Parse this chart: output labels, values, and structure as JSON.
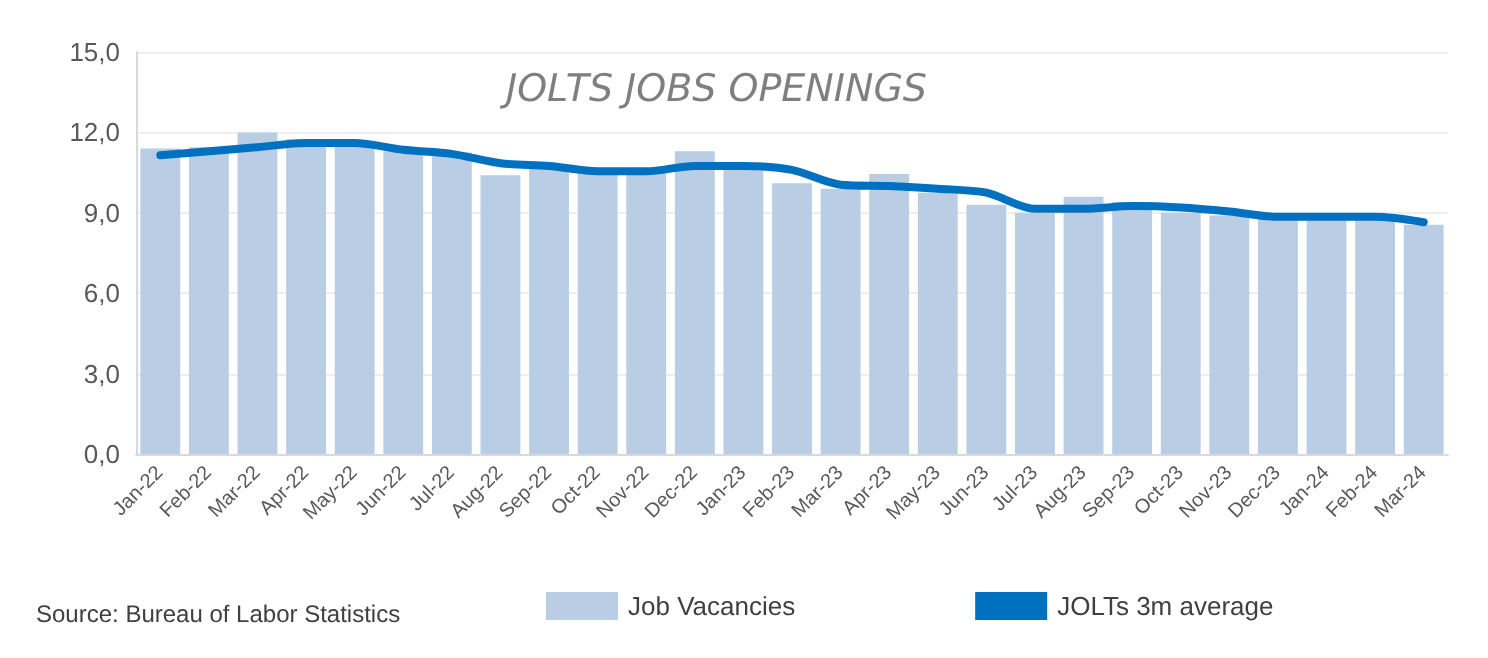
{
  "chart_data": {
    "type": "bar",
    "title": "JOLTS JOBS OPENINGS",
    "categories": [
      "Jan-22",
      "Feb-22",
      "Mar-22",
      "Apr-22",
      "May-22",
      "Jun-22",
      "Jul-22",
      "Aug-22",
      "Sep-22",
      "Oct-22",
      "Nov-22",
      "Dec-22",
      "Jan-23",
      "Feb-23",
      "Mar-23",
      "Apr-23",
      "May-23",
      "Jun-23",
      "Jul-23",
      "Aug-23",
      "Sep-23",
      "Oct-23",
      "Nov-23",
      "Dec-23",
      "Jan-24",
      "Feb-24",
      "Mar-24"
    ],
    "series": [
      {
        "name": "Job Vacancies",
        "color": "#b9cde4",
        "values": [
          11.4,
          11.45,
          12.0,
          11.75,
          11.6,
          11.3,
          11.25,
          10.4,
          10.8,
          10.5,
          10.5,
          11.3,
          10.8,
          10.1,
          9.9,
          10.45,
          9.75,
          9.3,
          9.0,
          9.6,
          9.4,
          9.0,
          8.9,
          8.85,
          8.85,
          8.9,
          8.55
        ]
      },
      {
        "name": "JOLTs 3m average",
        "type": "line",
        "color": "#0070c0",
        "values": [
          11.15,
          11.3,
          11.45,
          11.6,
          11.6,
          11.35,
          11.2,
          10.85,
          10.75,
          10.55,
          10.55,
          10.75,
          10.75,
          10.6,
          10.05,
          10.0,
          9.9,
          9.75,
          9.15,
          9.15,
          9.25,
          9.2,
          9.05,
          8.85,
          8.85,
          8.85,
          8.65
        ]
      }
    ],
    "ylim": [
      0,
      15
    ],
    "yticks": [
      {
        "value": 0,
        "label": "0,0"
      },
      {
        "value": 3,
        "label": "3,0"
      },
      {
        "value": 6,
        "label": "6,0"
      },
      {
        "value": 9,
        "label": "9,0"
      },
      {
        "value": 12,
        "label": "12,0"
      },
      {
        "value": 15,
        "label": "15,0"
      }
    ],
    "grid": "y",
    "legend": "bottom",
    "marker": "none",
    "line_style": "solid",
    "annotations": [
      "Source: Bureau of Labor Statistics"
    ]
  }
}
